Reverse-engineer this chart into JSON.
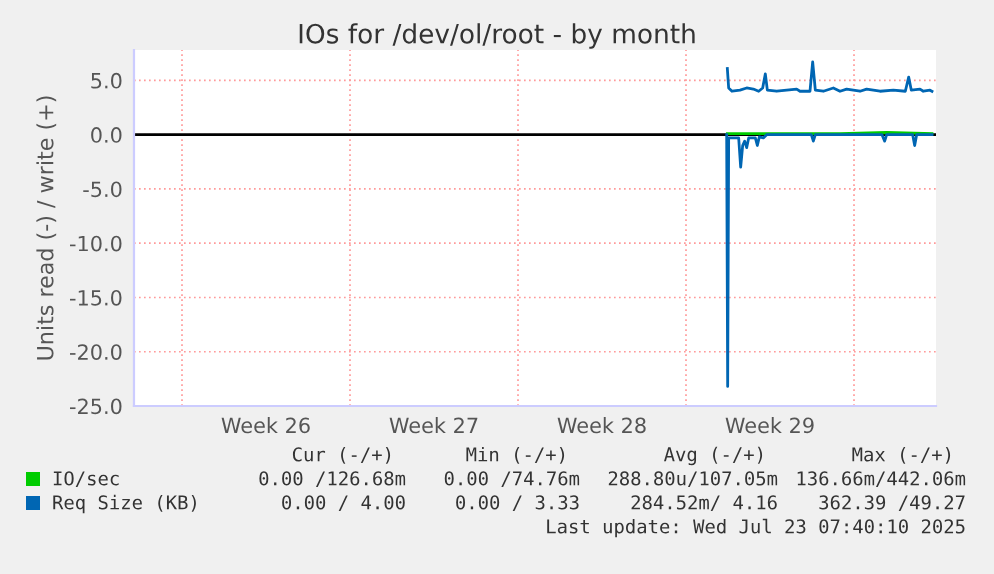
{
  "chart_data": {
    "type": "line",
    "title": "IOs for /dev/ol/root - by month",
    "ylabel": "Units read (-) / write (+)",
    "xlim": [
      "2025-06-21T00:00",
      "2025-07-24T10:00"
    ],
    "xticks": [
      {
        "value": "2025-06-23",
        "label": null
      },
      {
        "value": "2025-06-26T12:00",
        "label": "Week 26"
      },
      {
        "value": "2025-06-30",
        "label": null
      },
      {
        "value": "2025-07-03T12:00",
        "label": "Week 27"
      },
      {
        "value": "2025-07-07",
        "label": null
      },
      {
        "value": "2025-07-10T12:00",
        "label": "Week 28"
      },
      {
        "value": "2025-07-14",
        "label": null
      },
      {
        "value": "2025-07-17T12:00",
        "label": "Week 29"
      },
      {
        "value": "2025-07-21",
        "label": null
      }
    ],
    "ylim": [
      -25,
      7.8
    ],
    "yticks": [
      {
        "value": -25,
        "label": "-25.0"
      },
      {
        "value": -20,
        "label": "-20.0"
      },
      {
        "value": -15,
        "label": "-15.0"
      },
      {
        "value": -10,
        "label": "-10.0"
      },
      {
        "value": -5,
        "label": "-5.0"
      },
      {
        "value": 0,
        "label": "0.0"
      },
      {
        "value": 5,
        "label": "5.0"
      }
    ],
    "grid": true,
    "legend": "bottom",
    "ref_lines": [
      {
        "axis": "y",
        "value": 0,
        "color": "#000000"
      }
    ],
    "series": [
      {
        "name": "IO/sec",
        "color": "#00cc00",
        "x": [
          "2025-07-15T17:20",
          "2025-07-17T00:40",
          "2025-07-20T10:00",
          "2025-07-22T08:40",
          "2025-07-24T06:00"
        ],
        "values": [
          0.1,
          0.1,
          0.1,
          0.2,
          0.1
        ]
      },
      {
        "name": "Req Size (KB)",
        "color": "#0066b3",
        "x": [
          "2025-07-15T17:20",
          "2025-07-15T18:40",
          "2025-07-15T22:00",
          "2025-07-16T06:00",
          "2025-07-16T12:40",
          "2025-07-16T19:20",
          "2025-07-17T00:40",
          "2025-07-17T04:40",
          "2025-07-17T07:20",
          "2025-07-17T09:20",
          "2025-07-17T18:40",
          "2025-07-18T04:40",
          "2025-07-18T14:40",
          "2025-07-18T18:00",
          "2025-07-19T04:00",
          "2025-07-19T06:40",
          "2025-07-19T09:20",
          "2025-07-19T17:20",
          "2025-07-20T03:20",
          "2025-07-20T10:00",
          "2025-07-20T16:40",
          "2025-07-20T23:20",
          "2025-07-21T06:00",
          "2025-07-21T12:40",
          "2025-07-22T02:00",
          "2025-07-22T15:20",
          "2025-07-23T03:20",
          "2025-07-23T06:40",
          "2025-07-23T09:20",
          "2025-07-23T18:00",
          "2025-07-23T21:20",
          "2025-07-24T04:00",
          "2025-07-24T06:00"
        ],
        "values": [
          6.1,
          4.3,
          4.0,
          4.1,
          4.3,
          4.2,
          4.0,
          4.3,
          5.6,
          4.1,
          4.0,
          4.1,
          4.2,
          4.0,
          4.0,
          6.7,
          4.1,
          4.0,
          4.3,
          4.0,
          4.2,
          4.1,
          4.0,
          4.2,
          4.0,
          4.1,
          4.0,
          5.3,
          4.1,
          4.2,
          4.0,
          4.1,
          4.0
        ]
      },
      {
        "color": "#0066b3",
        "x": [
          "2025-07-15T16:40",
          "2025-07-15T17:40",
          "2025-07-15T18:40",
          "2025-07-16T04:40",
          "2025-07-16T06:40",
          "2025-07-16T08:40",
          "2025-07-16T10:40",
          "2025-07-16T12:40",
          "2025-07-16T14:40",
          "2025-07-16T21:20",
          "2025-07-16T23:20",
          "2025-07-17T01:20",
          "2025-07-17T05:20",
          "2025-07-17T08:40",
          "2025-07-19T05:20",
          "2025-07-19T07:20",
          "2025-07-19T09:20",
          "2025-07-22T04:00",
          "2025-07-22T06:40",
          "2025-07-22T08:40",
          "2025-07-23T10:40",
          "2025-07-23T12:40",
          "2025-07-23T14:40",
          "2025-07-24T06:00"
        ],
        "values": [
          0,
          -23.2,
          -0.3,
          -0.3,
          -3.0,
          -1.0,
          -0.6,
          -1.2,
          -0.3,
          -0.3,
          -1.0,
          -0.2,
          -0.3,
          0,
          0,
          -0.6,
          0,
          0,
          -0.6,
          0,
          0,
          -1.0,
          0,
          0
        ]
      }
    ],
    "annotations": [
      "Cur (-/+)",
      "Min (-/+)",
      "Avg (-/+)",
      "Max (-/+)",
      "0.00 /126.68m",
      "0.00 /74.76m",
      "288.80u/107.05m",
      "136.66m/442.06m",
      "0.00 / 4.00",
      "0.00 / 3.33",
      "284.52m/ 4.16",
      "362.39 /49.27",
      "Last update: Wed Jul 23 07:40:10 2025"
    ]
  }
}
